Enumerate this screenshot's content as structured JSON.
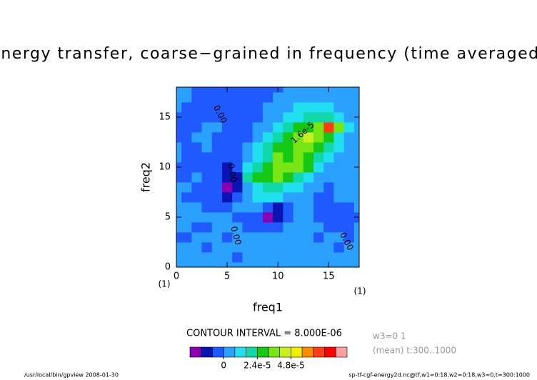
{
  "chart_data": {
    "type": "contour",
    "title": "energy transfer, coarse−grained in frequency (time averaged)",
    "x_label": "freq1",
    "y_label": "freq2",
    "x_units": "(1)",
    "y_units": "(1)",
    "x": [
      0,
      1,
      2,
      3,
      4,
      5,
      6,
      7,
      8,
      9,
      10,
      11,
      12,
      13,
      14,
      15,
      16,
      17,
      18
    ],
    "y": [
      0,
      1,
      2,
      3,
      4,
      5,
      6,
      7,
      8,
      9,
      10,
      11,
      12,
      13,
      14,
      15,
      16,
      17,
      18
    ],
    "xlim": [
      0,
      18
    ],
    "ylim": [
      0,
      18
    ],
    "xticks": [
      0,
      5,
      10,
      15
    ],
    "yticks": [
      0,
      5,
      10,
      15
    ],
    "z": [
      [
        4e-06,
        4e-06,
        4e-06,
        4e-06,
        4e-06,
        4e-06,
        4e-06,
        4e-06,
        4e-06,
        4e-06,
        4e-06,
        4e-06,
        4e-06,
        4e-06,
        4e-06,
        4e-06,
        4e-06,
        4e-06,
        4e-06
      ],
      [
        4e-06,
        4e-06,
        4e-06,
        4e-06,
        4e-06,
        4e-06,
        -4e-06,
        4e-06,
        4e-06,
        4e-06,
        4e-06,
        4e-06,
        4e-06,
        4e-06,
        4e-06,
        4e-06,
        4e-06,
        4e-06,
        4e-06
      ],
      [
        4e-06,
        4e-06,
        4e-06,
        -4e-06,
        4e-06,
        4e-06,
        4e-06,
        4e-06,
        4e-06,
        4e-06,
        4e-06,
        4e-06,
        4e-06,
        4e-06,
        4e-06,
        4e-06,
        -4e-06,
        4e-06,
        4e-06
      ],
      [
        -4e-06,
        -4e-06,
        4e-06,
        4e-06,
        4e-06,
        -4e-06,
        4e-06,
        4e-06,
        4e-06,
        4e-06,
        4e-06,
        4e-06,
        4e-06,
        4e-06,
        -4e-06,
        4e-06,
        4e-06,
        -4e-06,
        4e-06
      ],
      [
        4e-06,
        4e-06,
        -4e-06,
        -4e-06,
        4e-06,
        4e-06,
        4e-06,
        -4e-06,
        -4e-06,
        -4e-06,
        -4e-06,
        4e-06,
        4e-06,
        4e-06,
        4e-06,
        -4e-06,
        -4e-06,
        -4e-06,
        4e-06
      ],
      [
        4e-06,
        4e-06,
        4e-06,
        4e-06,
        4e-06,
        4e-06,
        -4e-06,
        -4e-06,
        -4e-06,
        -2e-05,
        -1.2e-05,
        -4e-06,
        4e-06,
        4e-06,
        -4e-06,
        -4e-06,
        -4e-06,
        -4e-06,
        -4e-06
      ],
      [
        4e-06,
        4e-06,
        4e-06,
        -4e-06,
        -4e-06,
        -4e-06,
        4e-06,
        4e-06,
        4e-06,
        -4e-06,
        -1.2e-05,
        -4e-06,
        4e-06,
        4e-06,
        -4e-06,
        -4e-06,
        -4e-06,
        -4e-06,
        4e-06
      ],
      [
        4e-06,
        -4e-06,
        -4e-06,
        -4e-06,
        -4e-06,
        -1.2e-05,
        -4e-06,
        4e-06,
        1.2e-05,
        1.2e-05,
        1.2e-05,
        4e-06,
        4e-06,
        4e-06,
        -4e-06,
        -4e-06,
        4e-06,
        4e-06,
        4e-06
      ],
      [
        4e-06,
        4e-06,
        -4e-06,
        -4e-06,
        -4e-06,
        -2e-05,
        -1.2e-05,
        4e-06,
        1.2e-05,
        2e-05,
        2e-05,
        1.2e-05,
        1.2e-05,
        4e-06,
        4e-06,
        -4e-06,
        4e-06,
        4e-06,
        4e-06
      ],
      [
        -4e-06,
        -4e-06,
        4e-06,
        -4e-06,
        -4e-06,
        -1.2e-05,
        -1.2e-05,
        2e-05,
        2.8e-05,
        2.8e-05,
        3.6e-05,
        2.8e-05,
        2e-05,
        1.2e-05,
        4e-06,
        4e-06,
        4e-06,
        4e-06,
        4e-06
      ],
      [
        -4e-06,
        -4e-06,
        -4e-06,
        -4e-06,
        -4e-06,
        -1.2e-05,
        -4e-06,
        1.2e-05,
        2e-05,
        2.8e-05,
        3.6e-05,
        3.6e-05,
        3.6e-05,
        2.8e-05,
        1.2e-05,
        4e-06,
        4e-06,
        4e-06,
        4e-06
      ],
      [
        4e-06,
        -4e-06,
        -4e-06,
        -4e-06,
        -4e-06,
        -4e-06,
        -4e-06,
        4e-06,
        1.2e-05,
        2e-05,
        3.6e-05,
        2.8e-05,
        3.6e-05,
        2.8e-05,
        2e-05,
        1.2e-05,
        4e-06,
        4e-06,
        4e-06
      ],
      [
        4e-06,
        -4e-06,
        -4e-06,
        4e-06,
        -4e-06,
        -4e-06,
        -4e-06,
        4e-06,
        1.2e-05,
        2e-05,
        2.8e-05,
        2.8e-05,
        3.6e-05,
        3.6e-05,
        2.8e-05,
        2e-05,
        1.2e-05,
        4e-06,
        4e-06
      ],
      [
        -4e-06,
        -4e-06,
        4e-06,
        4e-06,
        -4e-06,
        -4e-06,
        -4e-06,
        -4e-06,
        4e-06,
        1.2e-05,
        2e-05,
        2.8e-05,
        3.6e-05,
        4.4e-05,
        3.6e-05,
        2.8e-05,
        1.2e-05,
        4e-06,
        4e-06
      ],
      [
        -4e-06,
        -4e-06,
        -4e-06,
        4e-06,
        4e-06,
        -4e-06,
        -4e-06,
        -4e-06,
        4e-06,
        4e-06,
        1.2e-05,
        2e-05,
        2.8e-05,
        2.8e-05,
        3.6e-05,
        6.8e-05,
        3.6e-05,
        1.2e-05,
        4e-06
      ],
      [
        -4e-06,
        -4e-06,
        -4e-06,
        -4e-06,
        -4e-06,
        -4e-06,
        -4e-06,
        -4e-06,
        -4e-06,
        4e-06,
        4e-06,
        1.2e-05,
        1.2e-05,
        2e-05,
        2e-05,
        2e-05,
        1.2e-05,
        4e-06,
        4e-06
      ],
      [
        4e-06,
        -4e-06,
        -4e-06,
        -4e-06,
        -4e-06,
        -4e-06,
        -4e-06,
        -4e-06,
        -4e-06,
        4e-06,
        4e-06,
        4e-06,
        1.2e-05,
        1.2e-05,
        1.2e-05,
        1.2e-05,
        4e-06,
        4e-06,
        4e-06
      ],
      [
        4e-06,
        4e-06,
        -4e-06,
        -4e-06,
        -4e-06,
        -4e-06,
        -4e-06,
        -4e-06,
        -4e-06,
        -4e-06,
        4e-06,
        4e-06,
        4e-06,
        4e-06,
        4e-06,
        4e-06,
        4e-06,
        4e-06,
        4e-06
      ],
      [
        4e-06,
        4e-06,
        -4e-06,
        -4e-06,
        -4e-06,
        -4e-06,
        -4e-06,
        -4e-06,
        -4e-06,
        -4e-06,
        -4e-06,
        4e-06,
        4e-06,
        4e-06,
        4e-06,
        4e-06,
        4e-06,
        4e-06,
        4e-06
      ]
    ],
    "levels": [
      -2.4e-05,
      -1.6e-05,
      -8e-06,
      0,
      8e-06,
      1.6e-05,
      2.4e-05,
      3.2e-05,
      4e-05,
      4.8e-05,
      5.6e-05,
      6.4e-05,
      7.2e-05,
      8e-05,
      8.8e-05
    ],
    "colors": [
      "#8a00b0",
      "#0a14b4",
      "#1e5aff",
      "#2aa0ff",
      "#20e0f0",
      "#10d8a8",
      "#14c814",
      "#78e614",
      "#c8f01e",
      "#f0f000",
      "#ff8c00",
      "#ff3c14",
      "#ff0000",
      "#ffa0a0"
    ],
    "colorbar_title": "CONTOUR INTERVAL = 8.000E-06",
    "colorbar_ticks": [
      0,
      {
        "value": 2.4e-05,
        "label": "2.4e-5"
      },
      {
        "value": 4.8e-05,
        "label": "4.8e-5"
      }
    ],
    "contour_labels": [
      "0.00",
      "1.6e-5",
      "0.00",
      "0.00",
      "0.00"
    ],
    "side_notes": [
      "w3=0 1",
      "(mean) t:300..1000"
    ],
    "footer_left": "/usr/local/bin/gpview  2008-01-30",
    "footer_right": "sp-tf-cgf-energy2d.nc@tf,w1=0:18,w2=0:18,w3=0,t=300:1000"
  }
}
